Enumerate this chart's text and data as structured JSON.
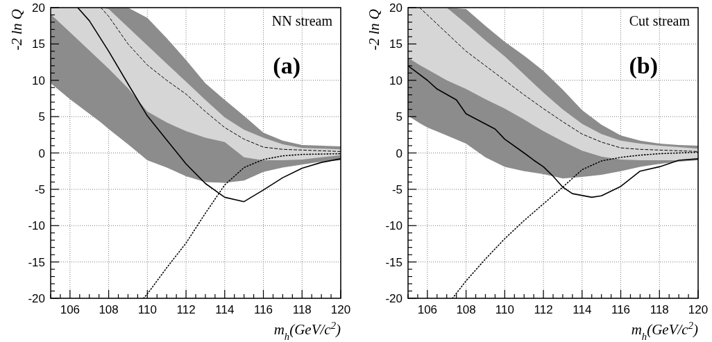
{
  "chart_data": [
    {
      "type": "line",
      "ylabel": "-2 ln Q",
      "xlabel": "m$_{h}$(GeV/c$^{2}$)",
      "annotations": [
        "NN stream",
        "(a)"
      ],
      "xlim": [
        105,
        120
      ],
      "ylim": [
        -20,
        20
      ],
      "xticks": [
        {
          "value": 105,
          "label": null
        },
        {
          "value": 105.5,
          "label": null
        },
        106,
        {
          "value": 106.5,
          "label": null
        },
        {
          "value": 107,
          "label": null
        },
        {
          "value": 107.5,
          "label": null
        },
        108,
        {
          "value": 108.5,
          "label": null
        },
        {
          "value": 109,
          "label": null
        },
        {
          "value": 109.5,
          "label": null
        },
        110,
        {
          "value": 110.5,
          "label": null
        },
        {
          "value": 111,
          "label": null
        },
        {
          "value": 111.5,
          "label": null
        },
        112,
        {
          "value": 112.5,
          "label": null
        },
        {
          "value": 113,
          "label": null
        },
        {
          "value": 113.5,
          "label": null
        },
        114,
        {
          "value": 114.5,
          "label": null
        },
        {
          "value": 115,
          "label": null
        },
        {
          "value": 115.5,
          "label": null
        },
        116,
        {
          "value": 116.5,
          "label": null
        },
        {
          "value": 117,
          "label": null
        },
        {
          "value": 117.5,
          "label": null
        },
        118,
        {
          "value": 118.5,
          "label": null
        },
        {
          "value": 119,
          "label": null
        },
        {
          "value": 119.5,
          "label": null
        },
        120
      ],
      "yticks": [
        -20,
        {
          "value": -19,
          "label": null
        },
        {
          "value": -18,
          "label": null
        },
        {
          "value": -17,
          "label": null
        },
        {
          "value": -16,
          "label": null
        },
        -15,
        {
          "value": -14,
          "label": null
        },
        {
          "value": -13,
          "label": null
        },
        {
          "value": -12,
          "label": null
        },
        {
          "value": -11,
          "label": null
        },
        -10,
        {
          "value": -9,
          "label": null
        },
        {
          "value": -8,
          "label": null
        },
        {
          "value": -7,
          "label": null
        },
        {
          "value": -6,
          "label": null
        },
        -5,
        {
          "value": -4,
          "label": null
        },
        {
          "value": -3,
          "label": null
        },
        {
          "value": -2,
          "label": null
        },
        {
          "value": -1,
          "label": null
        },
        0,
        {
          "value": 1,
          "label": null
        },
        {
          "value": 2,
          "label": null
        },
        {
          "value": 3,
          "label": null
        },
        {
          "value": 4,
          "label": null
        },
        5,
        {
          "value": 6,
          "label": null
        },
        {
          "value": 7,
          "label": null
        },
        {
          "value": 8,
          "label": null
        },
        {
          "value": 9,
          "label": null
        },
        10,
        {
          "value": 11,
          "label": null
        },
        {
          "value": 12,
          "label": null
        },
        {
          "value": 13,
          "label": null
        },
        {
          "value": 14,
          "label": null
        },
        15,
        {
          "value": 16,
          "label": null
        },
        {
          "value": 17,
          "label": null
        },
        {
          "value": 18,
          "label": null
        },
        {
          "value": 19,
          "label": null
        },
        20
      ],
      "grid": true,
      "series": [
        {
          "color": "#000000",
          "x": [
            105,
            106,
            107,
            107.6,
            108,
            109,
            110,
            111,
            112,
            113,
            114,
            115,
            116,
            117,
            118,
            119,
            120
          ],
          "values": [
            null,
            null,
            null,
            null,
            null,
            null,
            null,
            null,
            null,
            null,
            null,
            null,
            null,
            null,
            null,
            null,
            null
          ],
          "lower": [
            9.6,
            7.4,
            5.4,
            4.2,
            3.3,
            1.2,
            -1.0,
            -2.0,
            -3.2,
            -4.0,
            -4.1,
            -3.8,
            -2.6,
            -2.0,
            -1.6,
            -1.2,
            -1.0
          ],
          "upper": [
            20,
            20,
            20,
            20,
            20,
            20,
            18.6,
            15.8,
            12.8,
            9.6,
            7.3,
            5.1,
            2.8,
            1.7,
            1.1,
            1.0,
            0.9
          ]
        },
        {
          "color": "#000000",
          "line_style": "dashed",
          "x": [
            105,
            106,
            107,
            107.6,
            108,
            109,
            110,
            111,
            112,
            113,
            114,
            115,
            116,
            117,
            118,
            119,
            120
          ],
          "values": [
            null,
            null,
            null,
            20,
            18.8,
            15.0,
            12.1,
            10.0,
            8.1,
            5.7,
            3.5,
            1.9,
            0.8,
            0.5,
            0.4,
            0.3,
            0.2
          ],
          "lower": [
            19.1,
            16.6,
            14.1,
            12.6,
            11.6,
            8.9,
            5.7,
            4.2,
            3.0,
            2.1,
            1.5,
            -0.6,
            -1.0,
            -1.0,
            -0.9,
            -0.6,
            -0.3
          ],
          "upper": [
            20,
            20,
            20,
            20,
            19.8,
            17.3,
            14.8,
            12.3,
            9.8,
            7.3,
            4.9,
            3.2,
            2.1,
            1.2,
            0.7,
            0.6,
            0.5
          ]
        },
        {
          "color": "#000000",
          "line_style": "dotted",
          "x": [
            109.8,
            110,
            111,
            112,
            113,
            114,
            115,
            116,
            117,
            118,
            120
          ],
          "values": [
            -20,
            -19.4,
            -15.8,
            -12.4,
            -8.3,
            -4.4,
            -2.0,
            -0.9,
            -0.4,
            -0.2,
            -0.1
          ]
        },
        {
          "color": "#000000",
          "line_style": "solid",
          "x": [
            106.4,
            107,
            108,
            109,
            110,
            111,
            112,
            113,
            114,
            115,
            116,
            117,
            118,
            119,
            120
          ],
          "values": [
            20,
            18.2,
            14,
            9.5,
            5.1,
            1.8,
            -1.5,
            -4.2,
            -6.1,
            -6.7,
            -5.1,
            -3.4,
            -2.1,
            -1.3,
            -0.8
          ]
        }
      ]
    },
    {
      "type": "line",
      "ylabel": "-2 ln Q",
      "xlabel": "m$_{h}$(GeV/c$^{2}$)",
      "annotations": [
        "Cut stream",
        "(b)"
      ],
      "xlim": [
        105,
        120
      ],
      "ylim": [
        -20,
        20
      ],
      "xticks": [
        {
          "value": 105,
          "label": null
        },
        {
          "value": 105.5,
          "label": null
        },
        106,
        {
          "value": 106.5,
          "label": null
        },
        {
          "value": 107,
          "label": null
        },
        {
          "value": 107.5,
          "label": null
        },
        108,
        {
          "value": 108.5,
          "label": null
        },
        {
          "value": 109,
          "label": null
        },
        {
          "value": 109.5,
          "label": null
        },
        110,
        {
          "value": 110.5,
          "label": null
        },
        {
          "value": 111,
          "label": null
        },
        {
          "value": 111.5,
          "label": null
        },
        112,
        {
          "value": 112.5,
          "label": null
        },
        {
          "value": 113,
          "label": null
        },
        {
          "value": 113.5,
          "label": null
        },
        114,
        {
          "value": 114.5,
          "label": null
        },
        {
          "value": 115,
          "label": null
        },
        {
          "value": 115.5,
          "label": null
        },
        116,
        {
          "value": 116.5,
          "label": null
        },
        {
          "value": 117,
          "label": null
        },
        {
          "value": 117.5,
          "label": null
        },
        118,
        {
          "value": 118.5,
          "label": null
        },
        {
          "value": 119,
          "label": null
        },
        {
          "value": 119.5,
          "label": null
        },
        120
      ],
      "yticks": [
        -20,
        {
          "value": -19,
          "label": null
        },
        {
          "value": -18,
          "label": null
        },
        {
          "value": -17,
          "label": null
        },
        {
          "value": -16,
          "label": null
        },
        -15,
        {
          "value": -14,
          "label": null
        },
        {
          "value": -13,
          "label": null
        },
        {
          "value": -12,
          "label": null
        },
        {
          "value": -11,
          "label": null
        },
        -10,
        {
          "value": -9,
          "label": null
        },
        {
          "value": -8,
          "label": null
        },
        {
          "value": -7,
          "label": null
        },
        {
          "value": -6,
          "label": null
        },
        -5,
        {
          "value": -4,
          "label": null
        },
        {
          "value": -3,
          "label": null
        },
        {
          "value": -2,
          "label": null
        },
        {
          "value": -1,
          "label": null
        },
        0,
        {
          "value": 1,
          "label": null
        },
        {
          "value": 2,
          "label": null
        },
        {
          "value": 3,
          "label": null
        },
        {
          "value": 4,
          "label": null
        },
        5,
        {
          "value": 6,
          "label": null
        },
        {
          "value": 7,
          "label": null
        },
        {
          "value": 8,
          "label": null
        },
        {
          "value": 9,
          "label": null
        },
        10,
        {
          "value": 11,
          "label": null
        },
        {
          "value": 12,
          "label": null
        },
        {
          "value": 13,
          "label": null
        },
        {
          "value": 14,
          "label": null
        },
        15,
        {
          "value": 16,
          "label": null
        },
        {
          "value": 17,
          "label": null
        },
        {
          "value": 18,
          "label": null
        },
        {
          "value": 19,
          "label": null
        },
        20
      ],
      "grid": true,
      "series": [
        {
          "color": "#000000",
          "x": [
            105,
            105.6,
            106,
            107,
            108,
            109,
            110,
            111,
            112,
            113,
            114,
            115,
            116,
            117,
            118,
            119,
            120
          ],
          "values": [
            null,
            null,
            null,
            null,
            null,
            null,
            null,
            null,
            null,
            null,
            null,
            null,
            null,
            null,
            null,
            null,
            null
          ],
          "lower": [
            5.1,
            4.1,
            3.5,
            2.4,
            1.3,
            -0.6,
            -1.9,
            -2.5,
            -2.9,
            -3.5,
            -3.3,
            -3.0,
            -2.5,
            -1.9,
            -1.5,
            -1.2,
            -1.0
          ],
          "upper": [
            20,
            20,
            20,
            20,
            19.8,
            17.5,
            15.3,
            13.4,
            11.3,
            8.7,
            5.9,
            3.9,
            2.4,
            1.7,
            1.3,
            1.1,
            1.0
          ]
        },
        {
          "color": "#000000",
          "line_style": "dashed",
          "x": [
            105,
            105.6,
            106,
            107,
            108,
            109,
            110,
            111,
            112,
            113,
            114,
            115,
            116,
            117,
            118,
            119,
            120
          ],
          "values": [
            null,
            20,
            19.0,
            16.5,
            14.0,
            12.0,
            10.0,
            8.0,
            6.1,
            4.3,
            2.6,
            1.5,
            0.7,
            0.5,
            0.4,
            0.3,
            0.2
          ],
          "lower": [
            13.1,
            12.1,
            11.5,
            10.0,
            8.8,
            7.4,
            6.1,
            4.6,
            3.0,
            1.6,
            0.3,
            -0.5,
            -0.9,
            -1.0,
            -1.0,
            -1.0,
            -0.8
          ],
          "upper": [
            20,
            20,
            20,
            20,
            17.8,
            15.5,
            13.3,
            10.8,
            8.3,
            6.0,
            4.0,
            2.6,
            1.7,
            1.3,
            1.0,
            0.8,
            0.6
          ]
        },
        {
          "color": "#000000",
          "line_style": "dotted",
          "x": [
            107.3,
            108,
            109,
            110,
            111,
            112,
            113,
            114,
            115,
            116,
            117,
            118,
            120
          ],
          "values": [
            -20,
            -17.6,
            -14.6,
            -11.8,
            -9.3,
            -7.0,
            -4.7,
            -2.3,
            -1.1,
            -0.6,
            -0.3,
            -0.1,
            0.1
          ]
        },
        {
          "color": "#000000",
          "line_style": "solid",
          "x": [
            105,
            106,
            106.5,
            107.5,
            108,
            109.5,
            110,
            111,
            111.5,
            112,
            112.5,
            113,
            113.5,
            114.5,
            115,
            116,
            117,
            118,
            119,
            120
          ],
          "values": [
            12.0,
            10.0,
            8.8,
            7.3,
            5.4,
            3.3,
            1.9,
            0,
            -1.0,
            -1.9,
            -3.2,
            -4.7,
            -5.6,
            -6.1,
            -5.9,
            -4.6,
            -2.5,
            -1.9,
            -1.0,
            -0.8
          ]
        }
      ]
    }
  ]
}
